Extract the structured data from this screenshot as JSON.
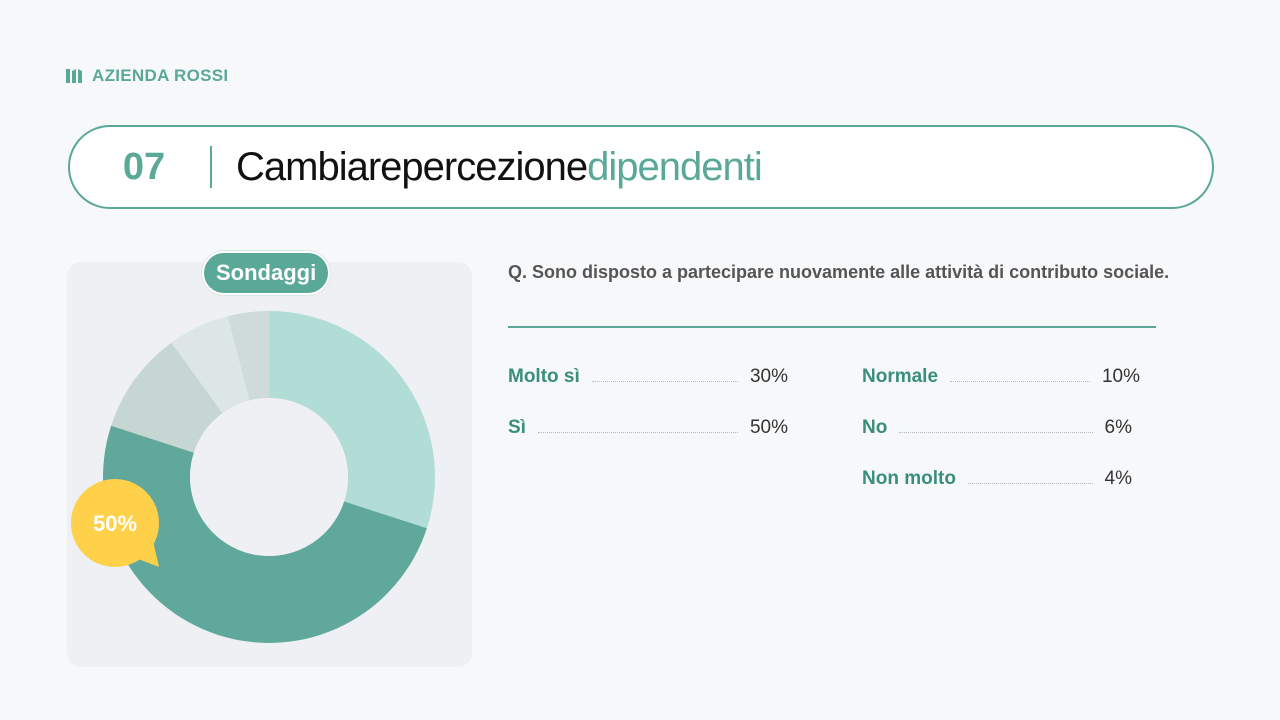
{
  "brand": {
    "name": "AZIENDA ROSSI",
    "icon": "logo-icon"
  },
  "header": {
    "number": "07",
    "title_main": "Cambiarepercezione",
    "title_accent": "dipendenti"
  },
  "chart_tag": "Sondaggi",
  "question": "Q. Sono disposto a partecipare nuovamente alle attività di contributo sociale.",
  "colors": {
    "accent": "#5aa898",
    "callout": "#ffd04a"
  },
  "chart_data": {
    "type": "pie",
    "donut": true,
    "categories": [
      "Molto sì",
      "Sì",
      "Normale",
      "No",
      "Non molto"
    ],
    "values": [
      30,
      50,
      10,
      6,
      4
    ],
    "value_labels": [
      "30%",
      "50%",
      "10%",
      "6%",
      "4%"
    ],
    "colors": [
      "#b2ddd6",
      "#5fa89b",
      "#c6d6d3",
      "#dce7e5",
      "#cfdbd8"
    ],
    "callout": {
      "category": "Sì",
      "label": "50%"
    }
  }
}
